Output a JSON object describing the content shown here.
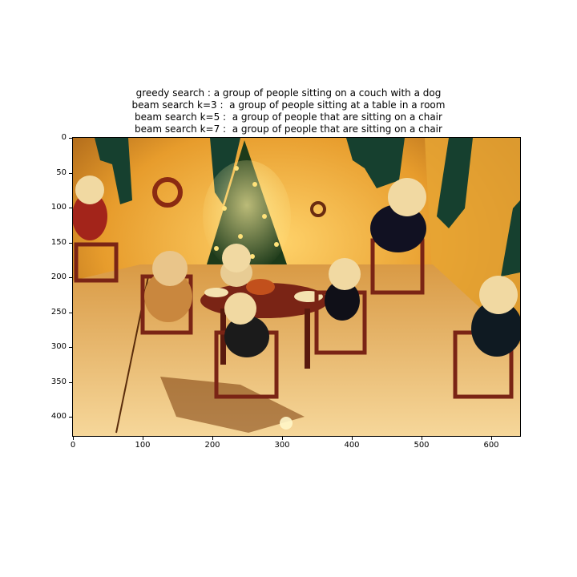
{
  "figure": {
    "title_lines": [
      "greedy search : a group of people sitting on a couch with a dog",
      "beam search k=3 :  a group of people sitting at a table in a room",
      "beam search k=5 :  a group of people that are sitting on a chair",
      "beam search k=7 :  a group of people that are sitting on a chair"
    ]
  },
  "axes": {
    "x_ticks": [
      "0",
      "100",
      "200",
      "300",
      "400",
      "500",
      "600"
    ],
    "y_ticks": [
      "0",
      "50",
      "100",
      "150",
      "200",
      "250",
      "300",
      "350",
      "400"
    ],
    "image_width": 640,
    "image_height": 427
  },
  "scene": {
    "description_tag": "teddy-bear-christmas-tea-party",
    "palette": {
      "wall": "#f2b33a",
      "wall_shadow": "#c9771a",
      "floor": "#f4c774",
      "floor_shadow": "#8a4a0f",
      "curtain": "#16402f",
      "tree": "#1d3a1a",
      "bear": "#f1d9a2",
      "table": "#7a2415"
    }
  }
}
